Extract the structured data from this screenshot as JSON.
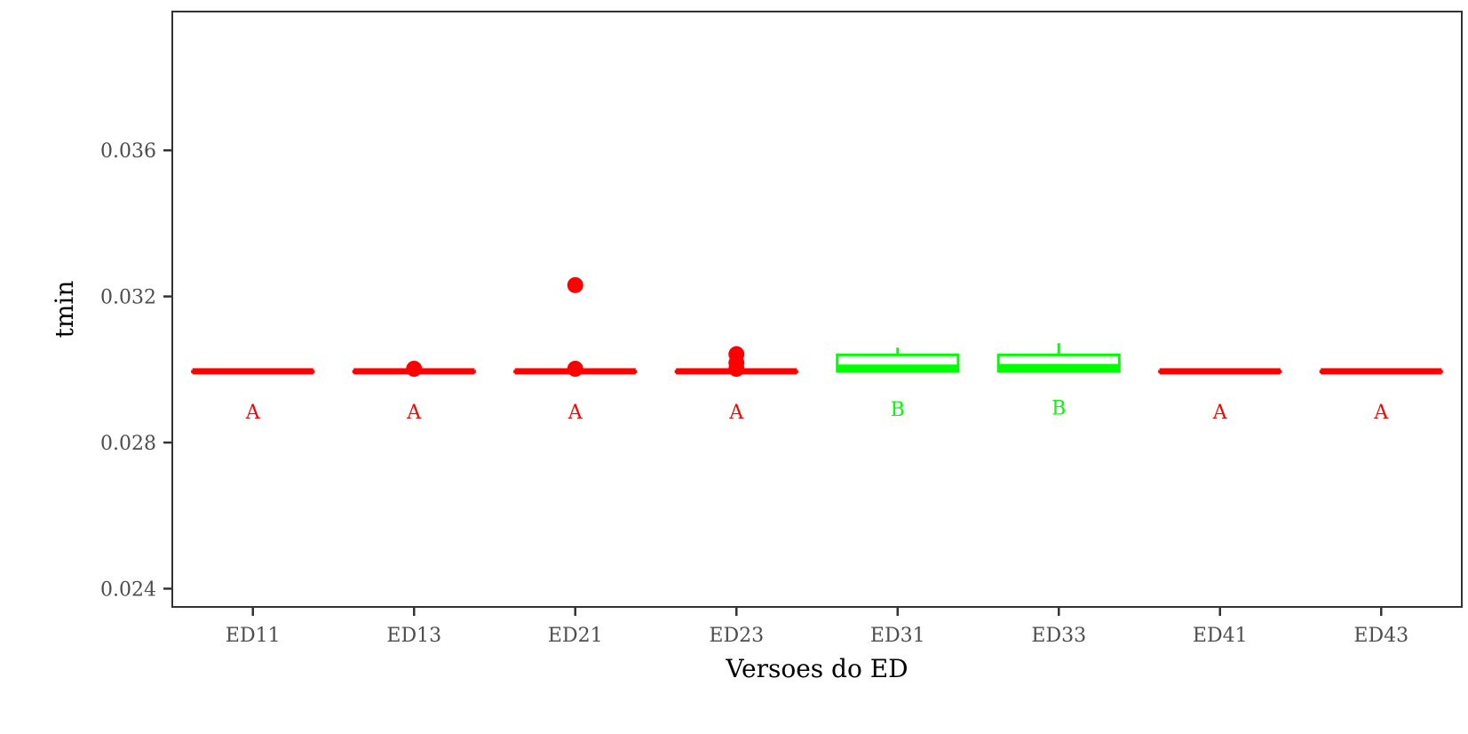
{
  "chart_data": {
    "type": "box",
    "xlabel": "Versoes do ED",
    "ylabel": "tmin",
    "ylim": [
      0.0235,
      0.0398
    ],
    "yticks": [
      0.024,
      0.028,
      0.032,
      0.036
    ],
    "ytick_labels": [
      "0.024",
      "0.028",
      "0.032",
      "0.036"
    ],
    "grid": false,
    "colors": {
      "A": "#ff0000",
      "B": "#00ff00",
      "axis": "#333333",
      "tick_text": "#4d4d4d"
    },
    "categories": [
      "ED11",
      "ED13",
      "ED21",
      "ED23",
      "ED31",
      "ED33",
      "ED41",
      "ED43"
    ],
    "boxes": [
      {
        "category": "ED11",
        "min": 0.02995,
        "q1": 0.02995,
        "median": 0.02995,
        "q3": 0.02995,
        "max": 0.02995,
        "outliers": [],
        "group": "A",
        "letter_y": 0.02885
      },
      {
        "category": "ED13",
        "min": 0.02995,
        "q1": 0.02995,
        "median": 0.02995,
        "q3": 0.02995,
        "max": 0.02995,
        "outliers": [
          0.03002
        ],
        "group": "A",
        "letter_y": 0.02885
      },
      {
        "category": "ED21",
        "min": 0.02995,
        "q1": 0.02995,
        "median": 0.02995,
        "q3": 0.02995,
        "max": 0.02995,
        "outliers": [
          0.03002,
          0.03231
        ],
        "group": "A",
        "letter_y": 0.02885
      },
      {
        "category": "ED23",
        "min": 0.02995,
        "q1": 0.02995,
        "median": 0.02995,
        "q3": 0.02995,
        "max": 0.02995,
        "outliers": [
          0.03002,
          0.03018,
          0.03042
        ],
        "group": "A",
        "letter_y": 0.02885
      },
      {
        "category": "ED31",
        "min": 0.02995,
        "q1": 0.02995,
        "median": 0.03005,
        "q3": 0.0304,
        "max": 0.0306,
        "outliers": [],
        "group": "B",
        "letter_y": 0.02893
      },
      {
        "category": "ED33",
        "min": 0.02995,
        "q1": 0.02995,
        "median": 0.03007,
        "q3": 0.0304,
        "max": 0.03072,
        "outliers": [],
        "group": "B",
        "letter_y": 0.02896
      },
      {
        "category": "ED41",
        "min": 0.02995,
        "q1": 0.02995,
        "median": 0.02995,
        "q3": 0.02995,
        "max": 0.02995,
        "outliers": [],
        "group": "A",
        "letter_y": 0.02885
      },
      {
        "category": "ED43",
        "min": 0.02995,
        "q1": 0.02995,
        "median": 0.02995,
        "q3": 0.02995,
        "max": 0.02995,
        "outliers": [],
        "group": "A",
        "letter_y": 0.02885
      }
    ]
  }
}
